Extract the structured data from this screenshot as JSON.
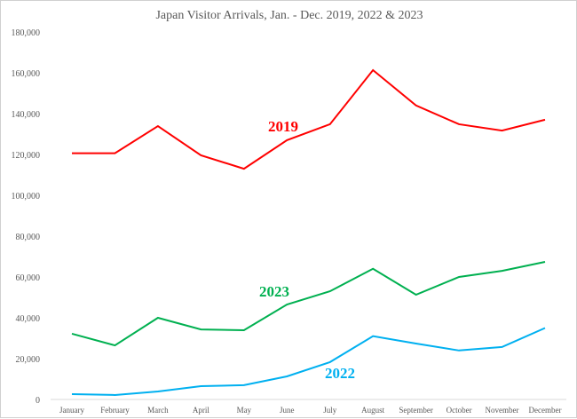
{
  "chart_data": {
    "type": "line",
    "title": "Japan Visitor Arrivals, Jan. - Dec. 2019, 2022 & 2023",
    "xlabel": "",
    "ylabel": "",
    "ylim": [
      0,
      180000
    ],
    "yticks": [
      0,
      20000,
      40000,
      60000,
      80000,
      100000,
      120000,
      140000,
      160000,
      180000
    ],
    "ytick_labels": [
      "0",
      "20,000",
      "40,000",
      "60,000",
      "80,000",
      "100,000",
      "120,000",
      "140,000",
      "160,000",
      "180,000"
    ],
    "grid": false,
    "categories": [
      "January",
      "February",
      "March",
      "April",
      "May",
      "June",
      "July",
      "August",
      "September",
      "October",
      "November",
      "December"
    ],
    "series": [
      {
        "name": "2019",
        "color": "#ff0000",
        "values": [
          120600,
          120600,
          133900,
          119600,
          113000,
          127000,
          134800,
          161300,
          144000,
          134800,
          131700,
          137000
        ]
      },
      {
        "name": "2023",
        "color": "#00b050",
        "values": [
          32200,
          26500,
          40000,
          34300,
          33900,
          46500,
          53000,
          64000,
          51300,
          60000,
          63000,
          67400
        ]
      },
      {
        "name": "2022",
        "color": "#00b0f0",
        "values": [
          2600,
          2200,
          3900,
          6500,
          7000,
          11300,
          18300,
          31000,
          27400,
          24000,
          25700,
          35000
        ]
      }
    ]
  }
}
